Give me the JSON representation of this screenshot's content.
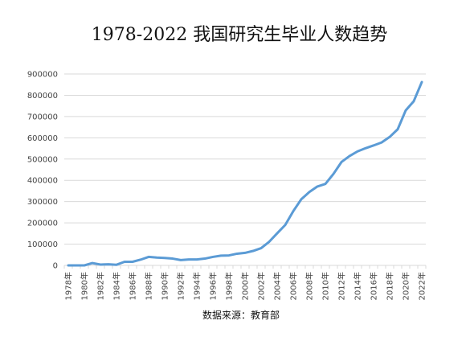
{
  "chart_data": {
    "type": "line",
    "title": "1978-2022 我国研究生毕业人数趋势",
    "source": "数据来源：教育部",
    "xlabel": "",
    "ylabel": "",
    "ylim": [
      0,
      900000
    ],
    "y_ticks": [
      "0",
      "100000",
      "200000",
      "300000",
      "400000",
      "500000",
      "600000",
      "700000",
      "800000",
      "900000"
    ],
    "grid": true,
    "legend": "none",
    "x_tick_labels": [
      "1978年",
      "1980年",
      "1982年",
      "1984年",
      "1986年",
      "1988年",
      "1990年",
      "1992年",
      "1994年",
      "1996年",
      "1998年",
      "2000年",
      "2002年",
      "2004年",
      "2006年",
      "2008年",
      "2010年",
      "2012年",
      "2014年",
      "2016年",
      "2018年",
      "2020年",
      "2022年"
    ],
    "x": [
      "1978",
      "1979",
      "1980",
      "1981",
      "1982",
      "1983",
      "1984",
      "1985",
      "1986",
      "1987",
      "1988",
      "1989",
      "1990",
      "1991",
      "1992",
      "1993",
      "1994",
      "1995",
      "1996",
      "1997",
      "1998",
      "1999",
      "2000",
      "2001",
      "2002",
      "2003",
      "2004",
      "2005",
      "2006",
      "2007",
      "2008",
      "2009",
      "2010",
      "2011",
      "2012",
      "2013",
      "2014",
      "2015",
      "2016",
      "2017",
      "2018",
      "2019",
      "2020",
      "2021",
      "2022"
    ],
    "series": [
      {
        "name": "",
        "color": "#5b9bd5",
        "values": [
          0,
          0,
          0,
          11000,
          4000,
          5000,
          3000,
          17000,
          17000,
          27000,
          40000,
          37000,
          35000,
          32000,
          25000,
          28000,
          28000,
          32000,
          40000,
          46000,
          47000,
          55000,
          59000,
          68000,
          81000,
          111000,
          151000,
          190000,
          255000,
          311000,
          345000,
          371000,
          383000,
          430000,
          486000,
          514000,
          536000,
          551000,
          564000,
          578000,
          604000,
          640000,
          729000,
          772000,
          862000
        ]
      }
    ]
  }
}
